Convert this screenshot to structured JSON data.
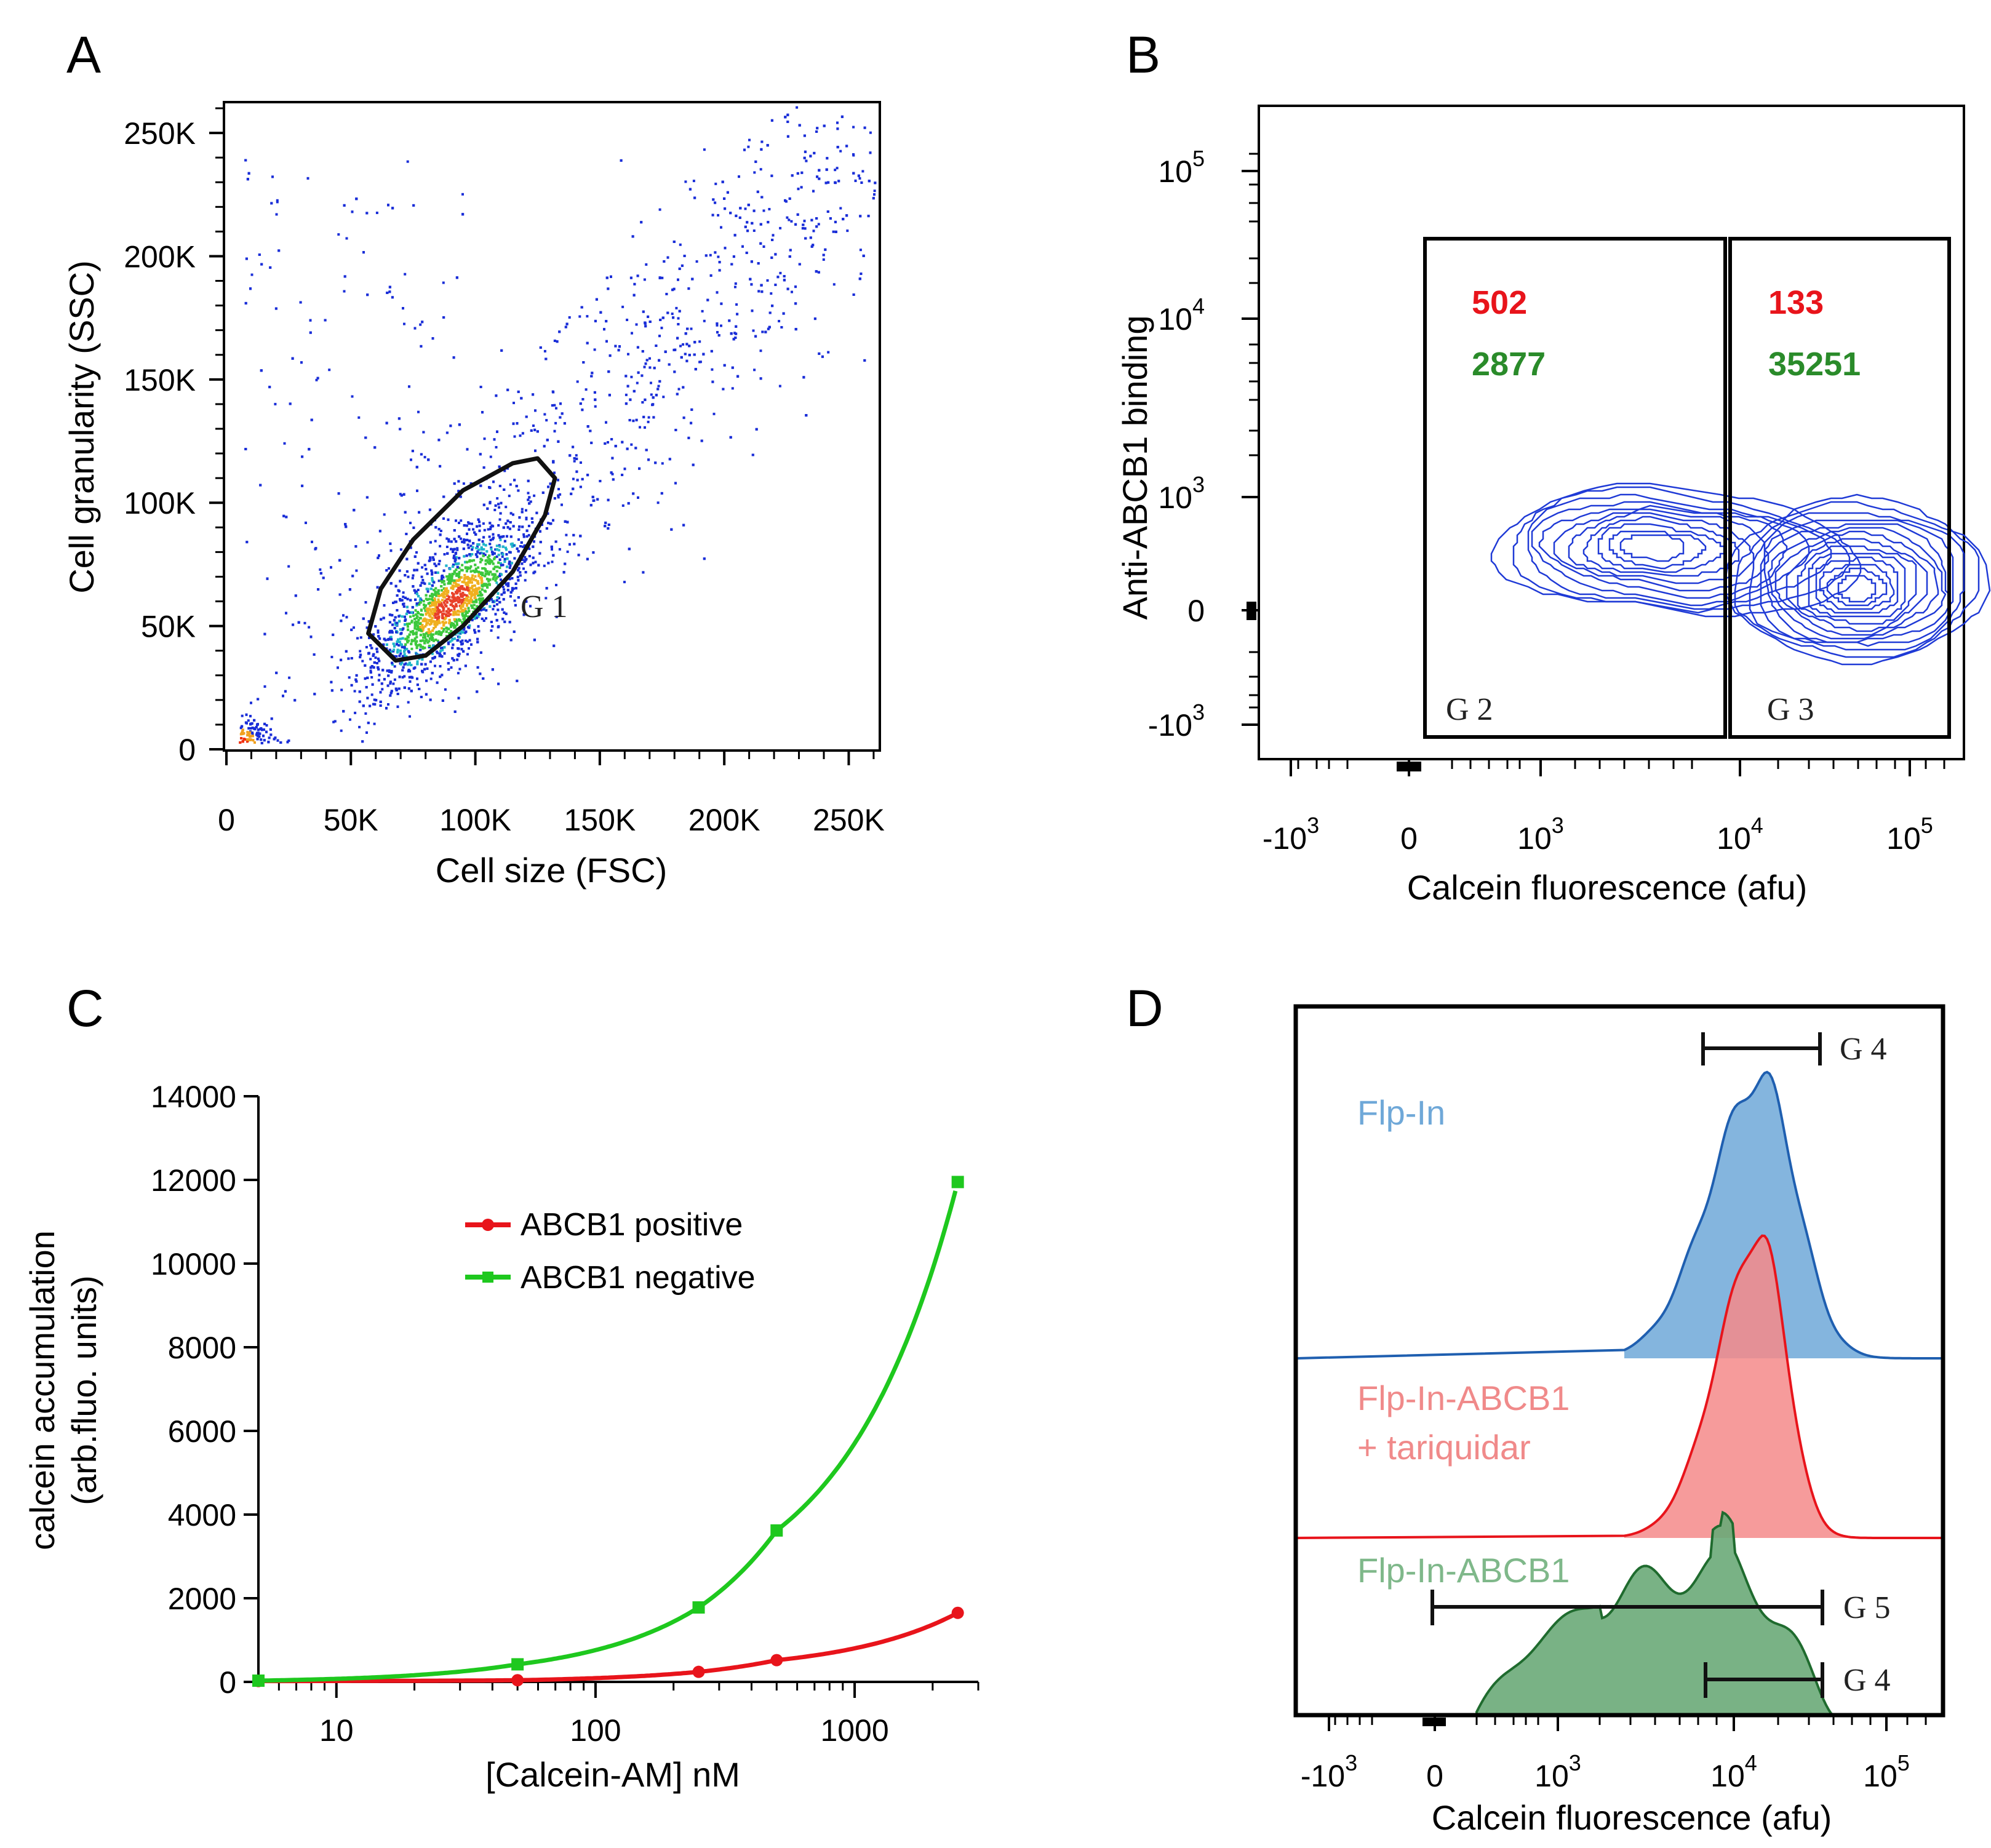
{
  "colors": {
    "red": "#e8141b",
    "green": "#2a8b2a",
    "green_line": "#1ec81e",
    "blue": "#1428c8",
    "flpin_fill": "#6fa8d8",
    "flpin_line": "#1f5fb0",
    "tariq_fill": "#f58a8a",
    "tariq_line": "#e8141b",
    "abcb1_fill": "#6aaa78",
    "abcb1_line": "#1f6b2e",
    "flpin_text": "#6fa8d8",
    "tariq_text": "#f08a8a",
    "abcb1_text": "#7fb88a"
  },
  "chart_data": [
    {
      "panel": "A",
      "type": "scatter",
      "title": "",
      "xlabel": "Cell size (FSC)",
      "ylabel": "Cell granularity (SSC)",
      "x_ticks": [
        "0",
        "50K",
        "100K",
        "150K",
        "200K",
        "250K"
      ],
      "y_ticks": [
        "0",
        "50K",
        "100K",
        "150K",
        "200K",
        "250K"
      ],
      "xlim": [
        0,
        262000
      ],
      "ylim": [
        0,
        262000
      ],
      "density_centers": [
        {
          "x": 90000,
          "y": 60000
        },
        {
          "x": 5000,
          "y": 3000
        }
      ],
      "gates": [
        {
          "name": "G 1",
          "vertices": [
            [
              57000,
              47000
            ],
            [
              62000,
              65000
            ],
            [
              75000,
              85000
            ],
            [
              95000,
              105000
            ],
            [
              115000,
              116000
            ],
            [
              125000,
              118000
            ],
            [
              132000,
              110000
            ],
            [
              128000,
              95000
            ],
            [
              115000,
              72000
            ],
            [
              95000,
              50000
            ],
            [
              80000,
              38000
            ],
            [
              68000,
              36000
            ]
          ]
        }
      ]
    },
    {
      "panel": "B",
      "type": "scatter",
      "title": "",
      "xlabel": "Calcein fluorescence (afu)",
      "ylabel": "Anti-ABCB1 binding",
      "x_ticks": [
        {
          "base": "-10",
          "exp": "3"
        },
        {
          "base": "0",
          "exp": ""
        },
        {
          "base": "10",
          "exp": "3"
        },
        {
          "base": "10",
          "exp": "4"
        },
        {
          "base": "10",
          "exp": "5"
        }
      ],
      "y_ticks": [
        {
          "base": "-10",
          "exp": "3"
        },
        {
          "base": "0",
          "exp": ""
        },
        {
          "base": "10",
          "exp": "3"
        },
        {
          "base": "10",
          "exp": "4"
        },
        {
          "base": "10",
          "exp": "5"
        }
      ],
      "gates": [
        {
          "name": "G 2",
          "count_red": "502",
          "count_green": "2877"
        },
        {
          "name": "G 3",
          "count_red": "133",
          "count_green": "35251"
        }
      ],
      "contour_peaks": [
        {
          "x": "3000",
          "y": "500"
        },
        {
          "x": "35000",
          "y": "150"
        }
      ]
    },
    {
      "panel": "C",
      "type": "line",
      "title": "",
      "xlabel": "[Calcein-AM] nM",
      "ylabel": "calcein accumulation",
      "ylabel2": "(arb.fluo. units)",
      "x_scale": "log",
      "xlim": [
        5,
        3000
      ],
      "ylim": [
        0,
        14000
      ],
      "x_ticks": [
        "10",
        "100",
        "1000"
      ],
      "y_ticks": [
        "0",
        "2000",
        "4000",
        "6000",
        "8000",
        "10000",
        "12000",
        "14000"
      ],
      "series": [
        {
          "name": "ABCB1 positive",
          "color": "#e8141b",
          "marker": "circle",
          "x": [
            5,
            50,
            250,
            500,
            2500
          ],
          "y": [
            20,
            40,
            240,
            520,
            1650
          ]
        },
        {
          "name": "ABCB1 negative",
          "color": "#1ec81e",
          "marker": "square",
          "x": [
            5,
            50,
            250,
            500,
            2500
          ],
          "y": [
            30,
            420,
            1780,
            3620,
            11950
          ]
        }
      ]
    },
    {
      "panel": "D",
      "type": "area",
      "title": "",
      "xlabel": "Calcein fluorescence (afu)",
      "x_ticks": [
        {
          "base": "-10",
          "exp": "3"
        },
        {
          "base": "0",
          "exp": ""
        },
        {
          "base": "10",
          "exp": "3"
        },
        {
          "base": "10",
          "exp": "4"
        },
        {
          "base": "10",
          "exp": "5"
        }
      ],
      "series": [
        {
          "name": "Flp-In",
          "peak": "15000"
        },
        {
          "name": "Flp-In-ABCB1",
          "name2": "+ tariquidar",
          "peak": "15000"
        },
        {
          "name": "Flp-In-ABCB1",
          "peak": "10000"
        }
      ],
      "gates": [
        {
          "name": "G 4",
          "range": [
            "7000",
            "40000"
          ]
        },
        {
          "name": "G 5",
          "range": [
            "0",
            "40000"
          ]
        },
        {
          "name": "G 4",
          "range": [
            "7000",
            "40000"
          ]
        }
      ]
    }
  ]
}
